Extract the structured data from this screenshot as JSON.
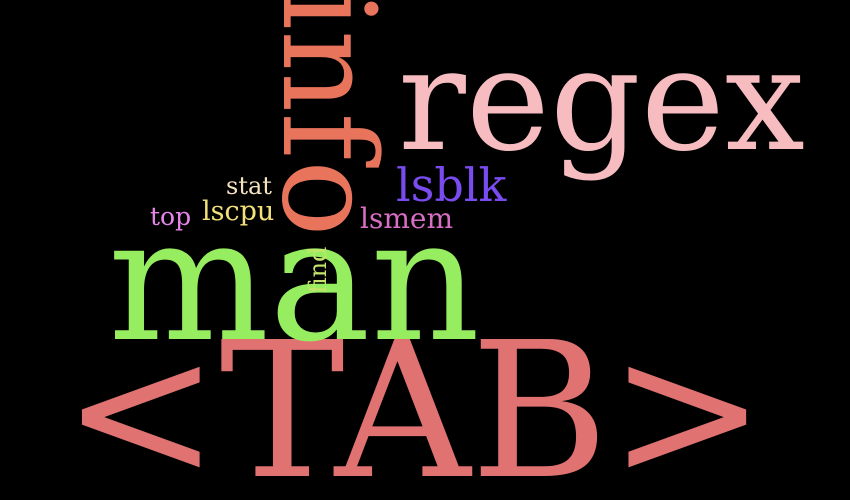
{
  "words": {
    "tab": {
      "text": "<TAB>",
      "color": "#e07272"
    },
    "man": {
      "text": "man",
      "color": "#96ed5f"
    },
    "regex": {
      "text": "regex",
      "color": "#f6bcc0"
    },
    "info": {
      "text": "info",
      "color": "#e8745c"
    },
    "lsblk": {
      "text": "lsblk",
      "color": "#7a4cf0"
    },
    "lsmem": {
      "text": "lsmem",
      "color": "#d86fc4"
    },
    "stat": {
      "text": "stat",
      "color": "#f4e3bf"
    },
    "lscpu": {
      "text": "lscpu",
      "color": "#f3e27a"
    },
    "top": {
      "text": "top",
      "color": "#e585e8"
    },
    "find": {
      "text": "find",
      "color": "#c5e56a"
    }
  }
}
